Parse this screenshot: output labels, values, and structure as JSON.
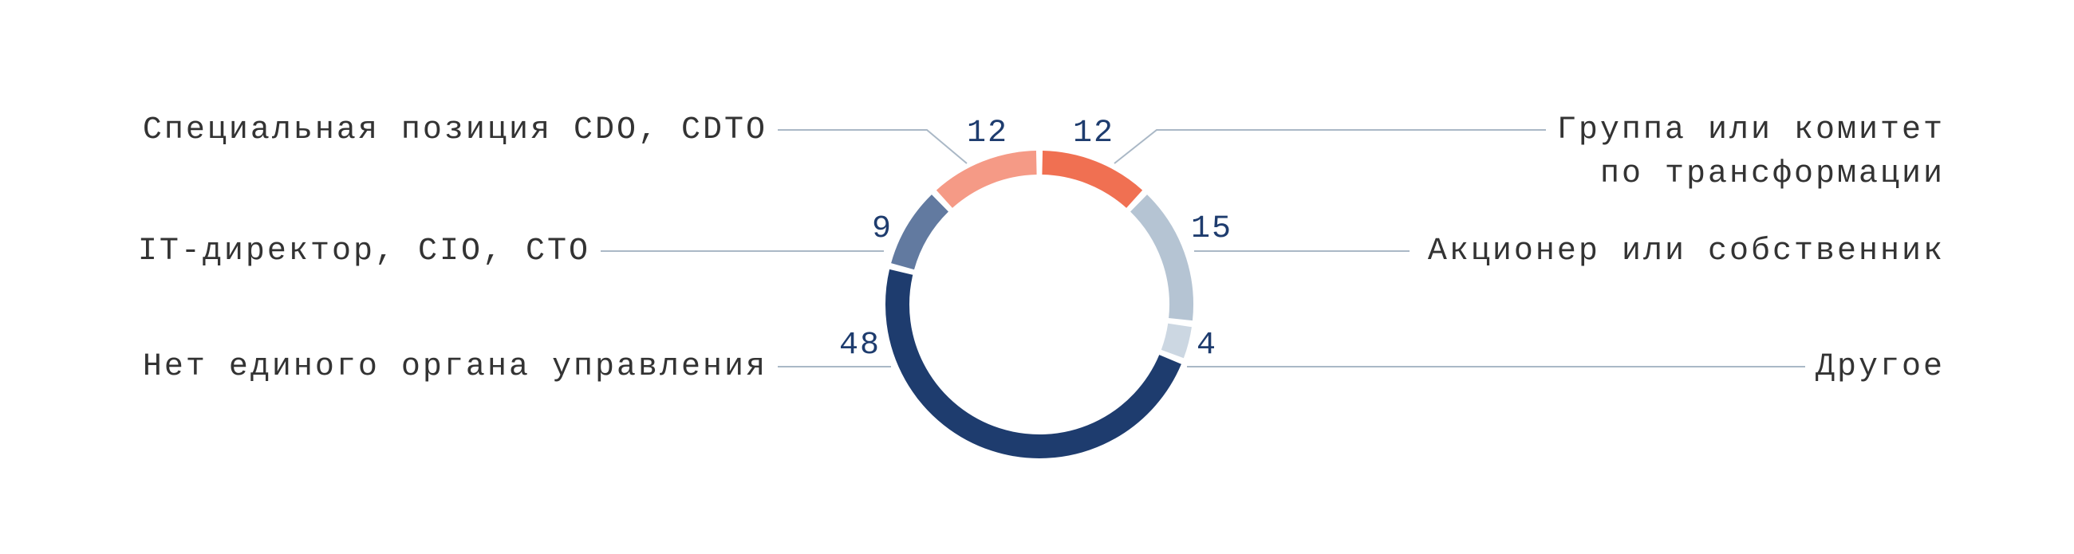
{
  "chart_data": {
    "type": "donut",
    "categories": [
      "Группа или комитет\nпо трансформации",
      "Акционер или собственник",
      "Другое",
      "Нет единого органа управления",
      "IT-директор, CIO, CTO",
      "Специальная позиция CDO, CDTO"
    ],
    "values": [
      12,
      15,
      4,
      48,
      9,
      12
    ],
    "colors": [
      "#f07052",
      "#b5c4d3",
      "#ccd7e2",
      "#1e3c6e",
      "#627aa0",
      "#f59a86"
    ]
  }
}
